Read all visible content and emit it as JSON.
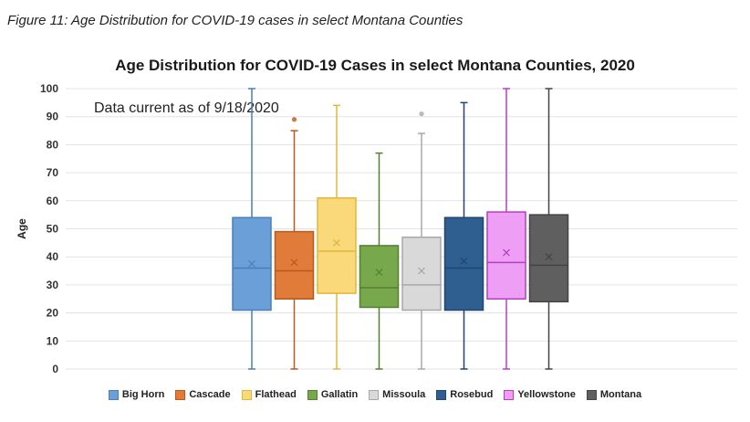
{
  "figure_caption": "Figure 11: Age Distribution for COVID-19 cases in select Montana Counties",
  "chart_data": {
    "type": "boxplot",
    "title": "Age Distribution for COVID-19 Cases in select Montana Counties, 2020",
    "annotation": "Data current as of 9/18/2020",
    "ylabel": "Age",
    "xlabel": "",
    "ylim": [
      0,
      100
    ],
    "yticks": [
      0,
      10,
      20,
      30,
      40,
      50,
      60,
      70,
      80,
      90,
      100
    ],
    "grid": true,
    "legend_position": "bottom",
    "series": [
      {
        "name": "Big Horn",
        "color": "#6a9fd8",
        "stroke": "#4a7fb8",
        "min": 0,
        "q1": 21,
        "median": 36,
        "q3": 54,
        "max": 100,
        "mean": 37.5,
        "outliers": []
      },
      {
        "name": "Cascade",
        "color": "#e07b39",
        "stroke": "#b85a1e",
        "min": 0,
        "q1": 25,
        "median": 35,
        "q3": 49,
        "max": 85,
        "mean": 38,
        "outliers": [
          89
        ]
      },
      {
        "name": "Flathead",
        "color": "#fad97a",
        "stroke": "#e3b63a",
        "min": 0,
        "q1": 27,
        "median": 42,
        "q3": 61,
        "max": 94,
        "mean": 45,
        "outliers": []
      },
      {
        "name": "Gallatin",
        "color": "#77a84c",
        "stroke": "#557f31",
        "min": 0,
        "q1": 22,
        "median": 29,
        "q3": 44,
        "max": 77,
        "mean": 34.5,
        "outliers": []
      },
      {
        "name": "Missoula",
        "color": "#d9d9d9",
        "stroke": "#a8a8a8",
        "min": 0,
        "q1": 21,
        "median": 30,
        "q3": 47,
        "max": 84,
        "mean": 35,
        "outliers": [
          91
        ]
      },
      {
        "name": "Rosebud",
        "color": "#2f5f91",
        "stroke": "#1f4570",
        "min": 0,
        "q1": 21,
        "median": 36,
        "q3": 54,
        "max": 95,
        "mean": 38.5,
        "outliers": []
      },
      {
        "name": "Yellowstone",
        "color": "#ee9ef5",
        "stroke": "#b53fc0",
        "min": 0,
        "q1": 25,
        "median": 38,
        "q3": 56,
        "max": 100,
        "mean": 41.5,
        "outliers": []
      },
      {
        "name": "Montana",
        "color": "#5f5f5f",
        "stroke": "#444444",
        "min": 0,
        "q1": 24,
        "median": 37,
        "q3": 55,
        "max": 100,
        "mean": 40,
        "outliers": []
      }
    ]
  }
}
